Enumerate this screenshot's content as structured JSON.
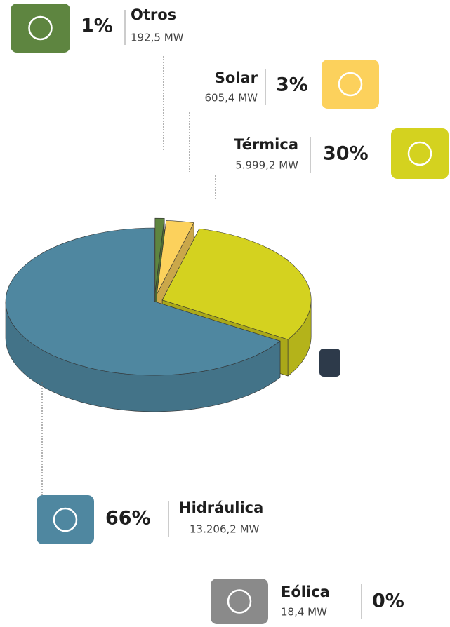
{
  "chart_data": {
    "type": "pie",
    "categories": [
      "Otros",
      "Solar",
      "Térmica",
      "Hidráulica",
      "Eólica"
    ],
    "values": [
      1,
      3,
      30,
      66,
      0
    ],
    "value_labels": [
      "1%",
      "3%",
      "30%",
      "66%",
      "0%"
    ],
    "power_labels": [
      "192,5 MW",
      "605,4 MW",
      "5.999,2 MW",
      "13.206,2 MW",
      "18,4 MW"
    ],
    "colors": [
      "#5e8540",
      "#fcd15c",
      "#d4d21f",
      "#4f87a0",
      "#8a8a8a"
    ]
  }
}
